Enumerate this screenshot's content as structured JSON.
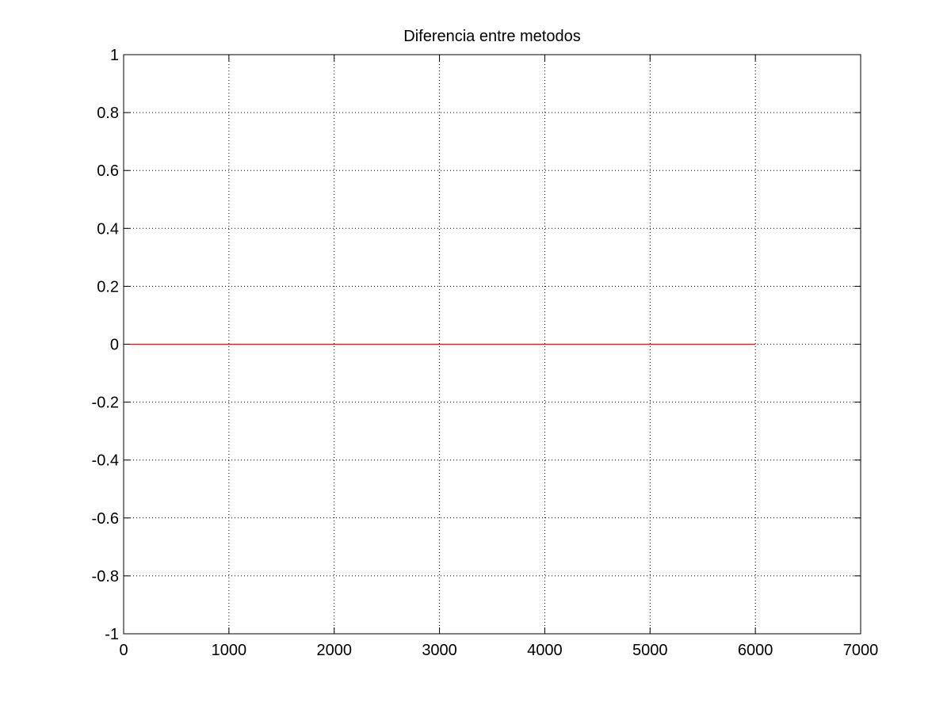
{
  "chart_data": {
    "type": "line",
    "title": "Diferencia entre metodos",
    "xlabel": "",
    "ylabel": "",
    "xlim": [
      0,
      7000
    ],
    "ylim": [
      -1,
      1
    ],
    "xticks": [
      0,
      1000,
      2000,
      3000,
      4000,
      5000,
      6000,
      7000
    ],
    "yticks": [
      -1,
      -0.8,
      -0.6,
      -0.4,
      -0.2,
      0,
      0.2,
      0.4,
      0.6,
      0.8,
      1
    ],
    "xtick_labels": [
      "0",
      "1000",
      "2000",
      "3000",
      "4000",
      "5000",
      "6000",
      "7000"
    ],
    "ytick_labels": [
      "-1",
      "-0.8",
      "-0.6",
      "-0.4",
      "-0.2",
      "0",
      "0.2",
      "0.4",
      "0.6",
      "0.8",
      "1"
    ],
    "grid": true,
    "series": [
      {
        "color": "#ff0000",
        "x": [
          0,
          1000,
          2000,
          3000,
          4000,
          5000,
          6000
        ],
        "y": [
          0,
          0,
          0,
          0,
          0,
          0,
          0
        ]
      }
    ]
  }
}
